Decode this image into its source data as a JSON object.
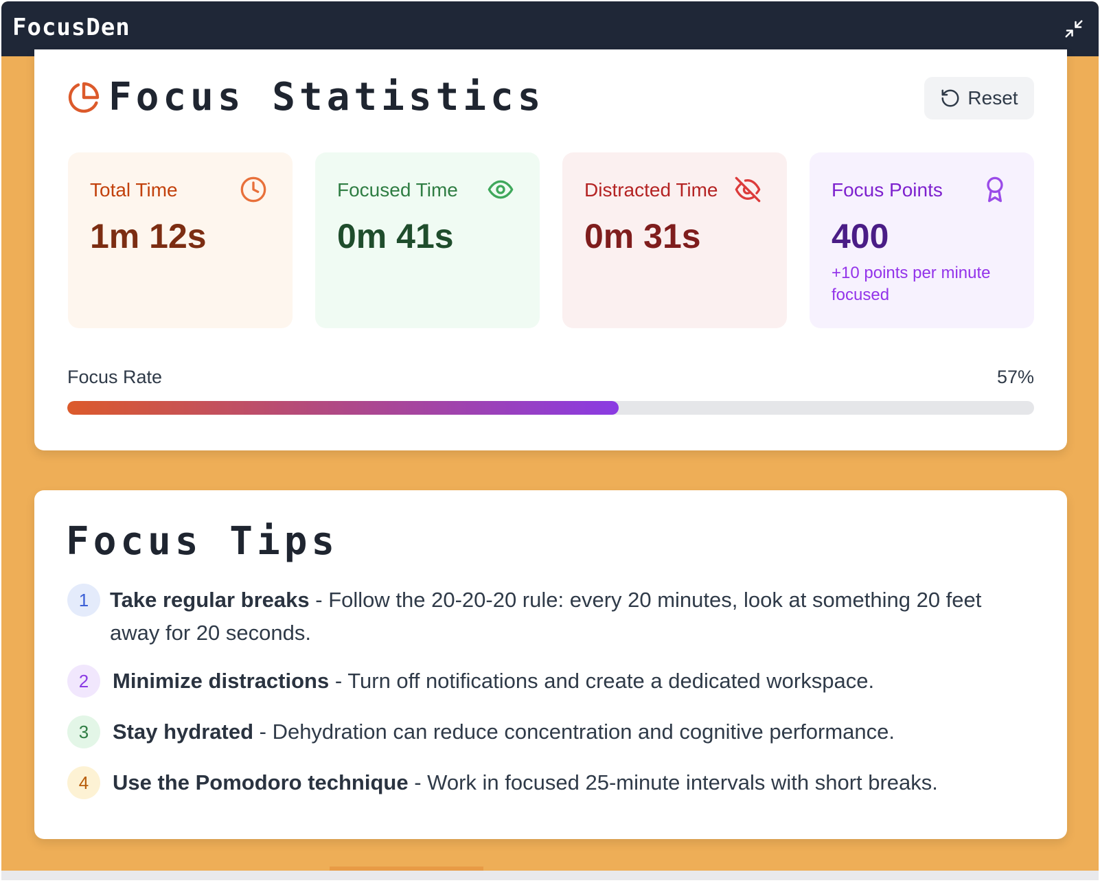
{
  "app": {
    "title": "FocusDen"
  },
  "stats": {
    "title": "Focus Statistics",
    "reset_label": "Reset",
    "cards": {
      "total": {
        "label": "Total Time",
        "value": "1m 12s",
        "icon": "clock-icon"
      },
      "focused": {
        "label": "Focused Time",
        "value": "0m 41s",
        "icon": "eye-icon"
      },
      "distracted": {
        "label": "Distracted Time",
        "value": "0m 31s",
        "icon": "eye-off-icon"
      },
      "points": {
        "label": "Focus Points",
        "value": "400",
        "note": "+10 points per minute focused",
        "icon": "award-icon"
      }
    },
    "focus_rate": {
      "label": "Focus Rate",
      "value_text": "57%",
      "percent": 57
    }
  },
  "tips": {
    "title": "Focus Tips",
    "items": [
      {
        "num": "1",
        "head": "Take regular breaks",
        "body": " - Follow the 20-20-20 rule: every 20 minutes, look at something 20 feet away for 20 seconds."
      },
      {
        "num": "2",
        "head": "Minimize distractions",
        "body": " - Turn off notifications and create a dedicated workspace."
      },
      {
        "num": "3",
        "head": "Stay hydrated",
        "body": " - Dehydration can reduce concentration and cognitive performance."
      },
      {
        "num": "4",
        "head": "Use the Pomodoro technique",
        "body": " - Work in focused 25-minute intervals with short breaks."
      }
    ]
  },
  "colors": {
    "background": "#eeae57",
    "titlebar": "#1f2737",
    "accent_orange": "#dc5a2b",
    "accent_purple": "#8a3be3"
  }
}
